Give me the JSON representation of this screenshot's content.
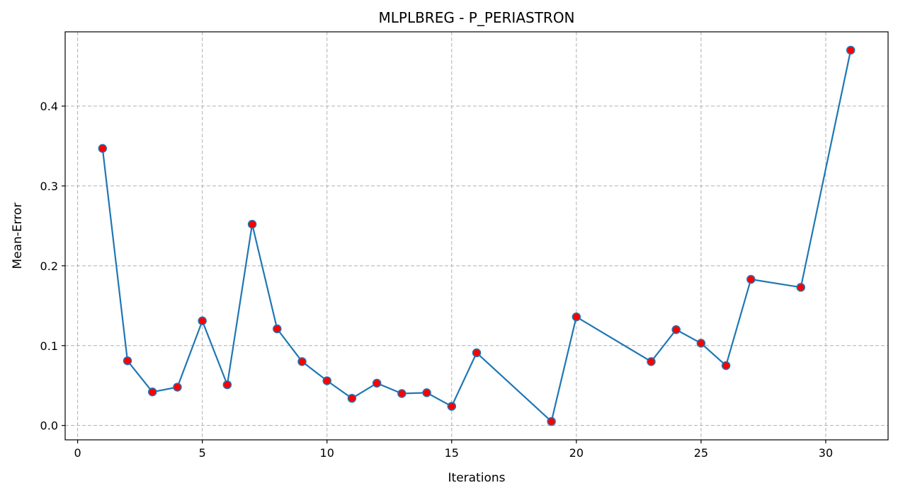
{
  "chart_data": {
    "type": "line",
    "title": "MLPLBREG - P_PERIASTRON",
    "xlabel": "Iterations",
    "ylabel": "Mean-Error",
    "xlim": [
      -0.5,
      32.5
    ],
    "ylim": [
      -0.018,
      0.493
    ],
    "xticks": [
      0,
      5,
      10,
      15,
      20,
      25,
      30
    ],
    "yticks": [
      0.0,
      0.1,
      0.2,
      0.3,
      0.4
    ],
    "xtick_labels": [
      "0",
      "5",
      "10",
      "15",
      "20",
      "25",
      "30"
    ],
    "ytick_labels": [
      "0.0",
      "0.1",
      "0.2",
      "0.3",
      "0.4"
    ],
    "grid": true,
    "series": [
      {
        "x": [
          1,
          2,
          3,
          4,
          5,
          6,
          7,
          8,
          9,
          10,
          11,
          12,
          13,
          14,
          15,
          16,
          19,
          20,
          23,
          24,
          25,
          26,
          27,
          29,
          31
        ],
        "y": [
          0.347,
          0.081,
          0.042,
          0.048,
          0.131,
          0.051,
          0.252,
          0.121,
          0.08,
          0.056,
          0.034,
          0.053,
          0.04,
          0.041,
          0.024,
          0.091,
          0.005,
          0.136,
          0.08,
          0.12,
          0.103,
          0.075,
          0.183,
          0.173,
          0.47
        ],
        "line_color": "#1f77b4",
        "marker_face": "#ff0000",
        "marker_edge": "#1f77b4"
      }
    ]
  }
}
